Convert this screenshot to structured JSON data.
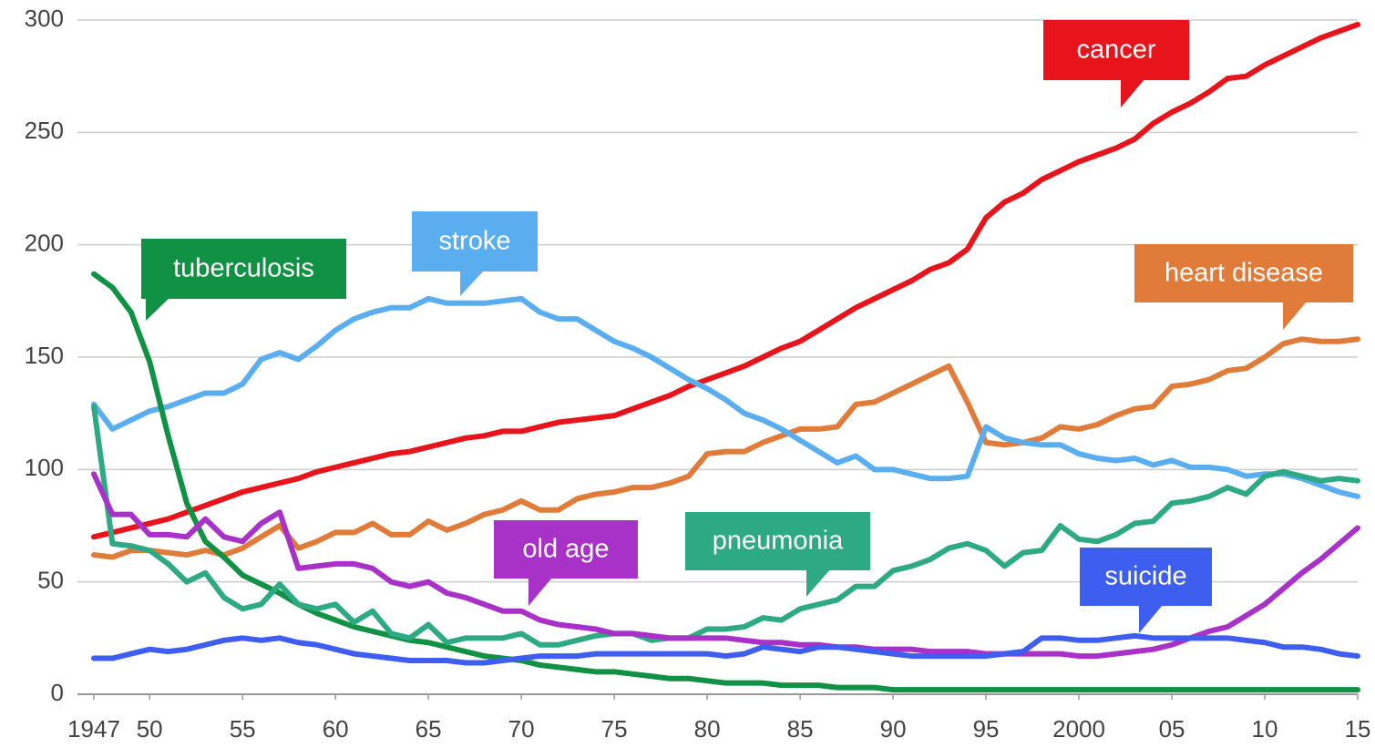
{
  "chart_data": {
    "type": "line",
    "x": [
      1947,
      1948,
      1949,
      1950,
      1951,
      1952,
      1953,
      1954,
      1955,
      1956,
      1957,
      1958,
      1959,
      1960,
      1961,
      1962,
      1963,
      1964,
      1965,
      1966,
      1967,
      1968,
      1969,
      1970,
      1971,
      1972,
      1973,
      1974,
      1975,
      1976,
      1977,
      1978,
      1979,
      1980,
      1981,
      1982,
      1983,
      1984,
      1985,
      1986,
      1987,
      1988,
      1989,
      1990,
      1991,
      1992,
      1993,
      1994,
      1995,
      1996,
      1997,
      1998,
      1999,
      2000,
      2001,
      2002,
      2003,
      2004,
      2005,
      2006,
      2007,
      2008,
      2009,
      2010,
      2011,
      2012,
      2013,
      2014,
      2015
    ],
    "xlim": [
      1947,
      2015
    ],
    "xticks": [
      1947,
      {
        "value": 1950,
        "label": "50"
      },
      {
        "value": 1955,
        "label": "55"
      },
      {
        "value": 1960,
        "label": "60"
      },
      {
        "value": 1965,
        "label": "65"
      },
      {
        "value": 1970,
        "label": "70"
      },
      {
        "value": 1975,
        "label": "75"
      },
      {
        "value": 1980,
        "label": "80"
      },
      {
        "value": 1985,
        "label": "85"
      },
      {
        "value": 1990,
        "label": "90"
      },
      {
        "value": 1995,
        "label": "95"
      },
      2000,
      {
        "value": 2005,
        "label": "05"
      },
      {
        "value": 2010,
        "label": "10"
      },
      {
        "value": 2015,
        "label": "15"
      }
    ],
    "ylim": [
      0,
      300
    ],
    "yticks": [
      0,
      50,
      100,
      150,
      200,
      250,
      300
    ],
    "grid": true,
    "series": [
      {
        "name": "cancer",
        "color": "#e8141b",
        "values": [
          70,
          72,
          74,
          76,
          78,
          81,
          84,
          87,
          90,
          92,
          94,
          96,
          99,
          101,
          103,
          105,
          107,
          108,
          110,
          112,
          114,
          115,
          117,
          117,
          119,
          121,
          122,
          123,
          124,
          127,
          130,
          133,
          137,
          140,
          143,
          146,
          150,
          154,
          157,
          162,
          167,
          172,
          176,
          180,
          184,
          189,
          192,
          198,
          212,
          219,
          223,
          229,
          233,
          237,
          240,
          243,
          247,
          254,
          259,
          263,
          268,
          274,
          275,
          280,
          284,
          288,
          292,
          295,
          298
        ]
      },
      {
        "name": "heart disease",
        "color": "#e07b39",
        "values": [
          62,
          61,
          64,
          64,
          63,
          62,
          64,
          62,
          65,
          70,
          75,
          65,
          68,
          72,
          72,
          76,
          71,
          71,
          77,
          73,
          76,
          80,
          82,
          86,
          82,
          82,
          87,
          89,
          90,
          92,
          92,
          94,
          97,
          107,
          108,
          108,
          112,
          115,
          118,
          118,
          119,
          129,
          130,
          134,
          138,
          142,
          146,
          130,
          112,
          111,
          112,
          114,
          119,
          118,
          120,
          124,
          127,
          128,
          137,
          138,
          140,
          144,
          145,
          150,
          156,
          158,
          157,
          157,
          158
        ]
      },
      {
        "name": "stroke",
        "color": "#5aaef0",
        "values": [
          129,
          118,
          122,
          126,
          128,
          131,
          134,
          134,
          138,
          149,
          152,
          149,
          155,
          162,
          167,
          170,
          172,
          172,
          176,
          174,
          174,
          174,
          175,
          176,
          170,
          167,
          167,
          162,
          157,
          154,
          150,
          145,
          140,
          136,
          131,
          125,
          122,
          118,
          113,
          108,
          103,
          106,
          100,
          100,
          98,
          96,
          96,
          97,
          119,
          114,
          112,
          111,
          111,
          107,
          105,
          104,
          105,
          102,
          104,
          101,
          101,
          100,
          97,
          98,
          98,
          96,
          93,
          90,
          88
        ]
      },
      {
        "name": "tuberculosis",
        "color": "#119144",
        "values": [
          187,
          181,
          170,
          148,
          115,
          85,
          68,
          61,
          53,
          49,
          45,
          40,
          36,
          33,
          30,
          28,
          26,
          24,
          23,
          21,
          19,
          17,
          16,
          15,
          13,
          12,
          11,
          10,
          10,
          9,
          8,
          7,
          7,
          6,
          5,
          5,
          5,
          4,
          4,
          4,
          3,
          3,
          3,
          2,
          2,
          2,
          2,
          2,
          2,
          2,
          2,
          2,
          2,
          2,
          2,
          2,
          2,
          2,
          2,
          2,
          2,
          2,
          2,
          2,
          2,
          2,
          2,
          2,
          2
        ]
      },
      {
        "name": "pneumonia",
        "color": "#2daa83",
        "values": [
          128,
          67,
          66,
          64,
          58,
          50,
          54,
          43,
          38,
          40,
          49,
          40,
          38,
          40,
          32,
          37,
          27,
          25,
          31,
          23,
          25,
          25,
          25,
          27,
          22,
          22,
          24,
          26,
          27,
          27,
          24,
          25,
          25,
          29,
          29,
          30,
          34,
          33,
          38,
          40,
          42,
          48,
          48,
          55,
          57,
          60,
          65,
          67,
          64,
          57,
          63,
          64,
          75,
          69,
          68,
          71,
          76,
          77,
          85,
          86,
          88,
          92,
          89,
          97,
          99,
          97,
          95,
          96,
          95
        ]
      },
      {
        "name": "old age",
        "color": "#a832c8",
        "values": [
          98,
          80,
          80,
          71,
          71,
          70,
          78,
          70,
          68,
          76,
          81,
          56,
          57,
          58,
          58,
          56,
          50,
          48,
          50,
          45,
          43,
          40,
          37,
          37,
          33,
          31,
          30,
          29,
          27,
          27,
          26,
          25,
          25,
          25,
          25,
          24,
          23,
          23,
          22,
          22,
          21,
          21,
          20,
          20,
          20,
          19,
          19,
          19,
          18,
          18,
          18,
          18,
          18,
          17,
          17,
          18,
          19,
          20,
          22,
          25,
          28,
          30,
          35,
          40,
          47,
          54,
          60,
          67,
          74
        ]
      },
      {
        "name": "suicide",
        "color": "#3e5ef0",
        "values": [
          16,
          16,
          18,
          20,
          19,
          20,
          22,
          24,
          25,
          24,
          25,
          23,
          22,
          20,
          18,
          17,
          16,
          15,
          15,
          15,
          14,
          14,
          15,
          16,
          17,
          17,
          17,
          18,
          18,
          18,
          18,
          18,
          18,
          18,
          17,
          18,
          21,
          20,
          19,
          21,
          21,
          20,
          19,
          18,
          17,
          17,
          17,
          17,
          17,
          18,
          19,
          25,
          25,
          24,
          24,
          25,
          26,
          25,
          25,
          25,
          25,
          25,
          24,
          23,
          21,
          21,
          20,
          18,
          17
        ]
      }
    ]
  }
}
